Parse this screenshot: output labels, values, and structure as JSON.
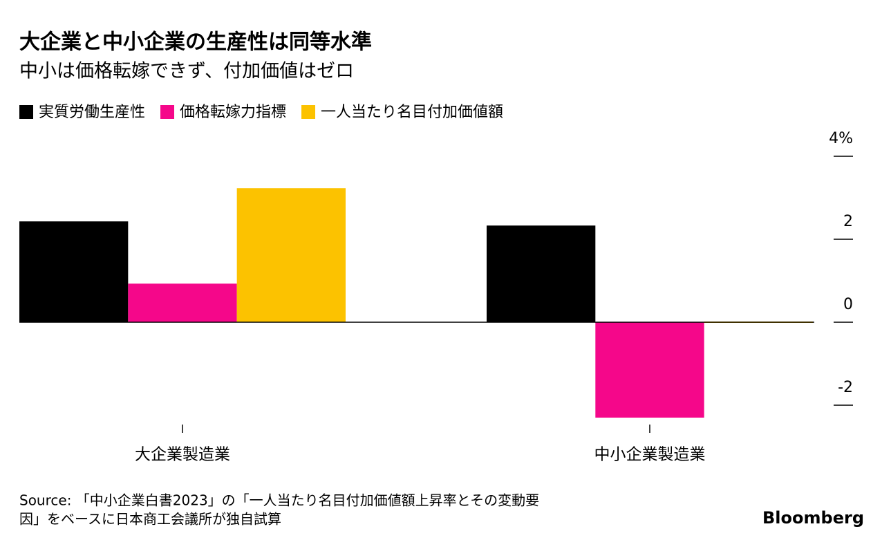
{
  "chart_data": {
    "type": "bar",
    "title": "大企業と中小企業の生産性は同等水準",
    "subtitle": "中小は価格転嫁できず、付加価値はゼロ",
    "categories": [
      "大企業製造業",
      "中小企業製造業"
    ],
    "series": [
      {
        "name": "実質労働生産性",
        "color": "#000000",
        "values": [
          2.43,
          2.33
        ]
      },
      {
        "name": "価格転嫁力指標",
        "color": "#f5078a",
        "values": [
          0.93,
          -2.3
        ]
      },
      {
        "name": "一人当たり名目付加価値額",
        "color": "#fcc200",
        "values": [
          3.23,
          0.0
        ]
      }
    ],
    "ylim": [
      -2.5,
      4.5
    ],
    "yticks": [
      {
        "value": 4,
        "label": "4%"
      },
      2,
      0,
      -2
    ],
    "source": [
      "Source: 「中小企業白書2023」の「一人当たり名目付加価値額上昇率とその変動要",
      "因」をベースに日本商工会議所が独自試算"
    ],
    "brand": "Bloomberg"
  }
}
